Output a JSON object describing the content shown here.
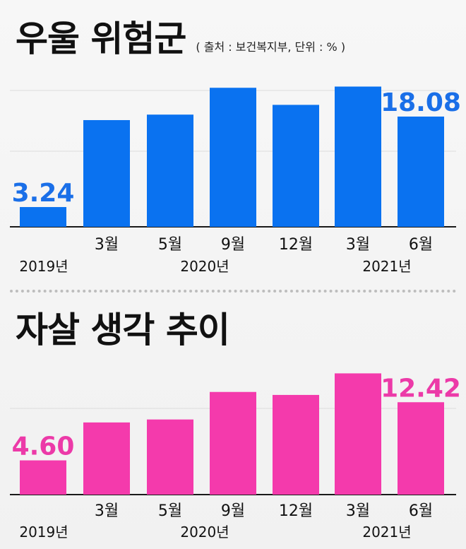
{
  "source_note": "( 출처 : 보건복지부, 단위 : % )",
  "chart_data": [
    {
      "type": "bar",
      "title": "우울 위험군",
      "categories": [
        "2019년",
        "3월",
        "5월",
        "9월",
        "12월",
        "3월",
        "6월"
      ],
      "year_labels": [
        "2019년",
        "2020년",
        "2021년"
      ],
      "values": [
        3.24,
        17.5,
        18.4,
        22.8,
        20.0,
        23.0,
        18.08
      ],
      "data_labels": [
        "3.24",
        "",
        "",
        "",
        "",
        "",
        "18.08"
      ],
      "color": "#0a72f0",
      "label_color": "#1a6fe8",
      "ylim": [
        0,
        27
      ],
      "grid": true
    },
    {
      "type": "bar",
      "title": "자살 생각 추이",
      "categories": [
        "2019년",
        "3월",
        "5월",
        "9월",
        "12월",
        "3월",
        "6월"
      ],
      "year_labels": [
        "2019년",
        "2020년",
        "2021년"
      ],
      "values": [
        4.6,
        9.7,
        10.1,
        13.8,
        13.4,
        16.3,
        12.42
      ],
      "data_labels": [
        "4.60",
        "",
        "",
        "",
        "",
        "",
        "12.42"
      ],
      "color": "#f43aac",
      "label_color": "#ec3aa8",
      "ylim": [
        0,
        19
      ],
      "grid": true
    }
  ]
}
